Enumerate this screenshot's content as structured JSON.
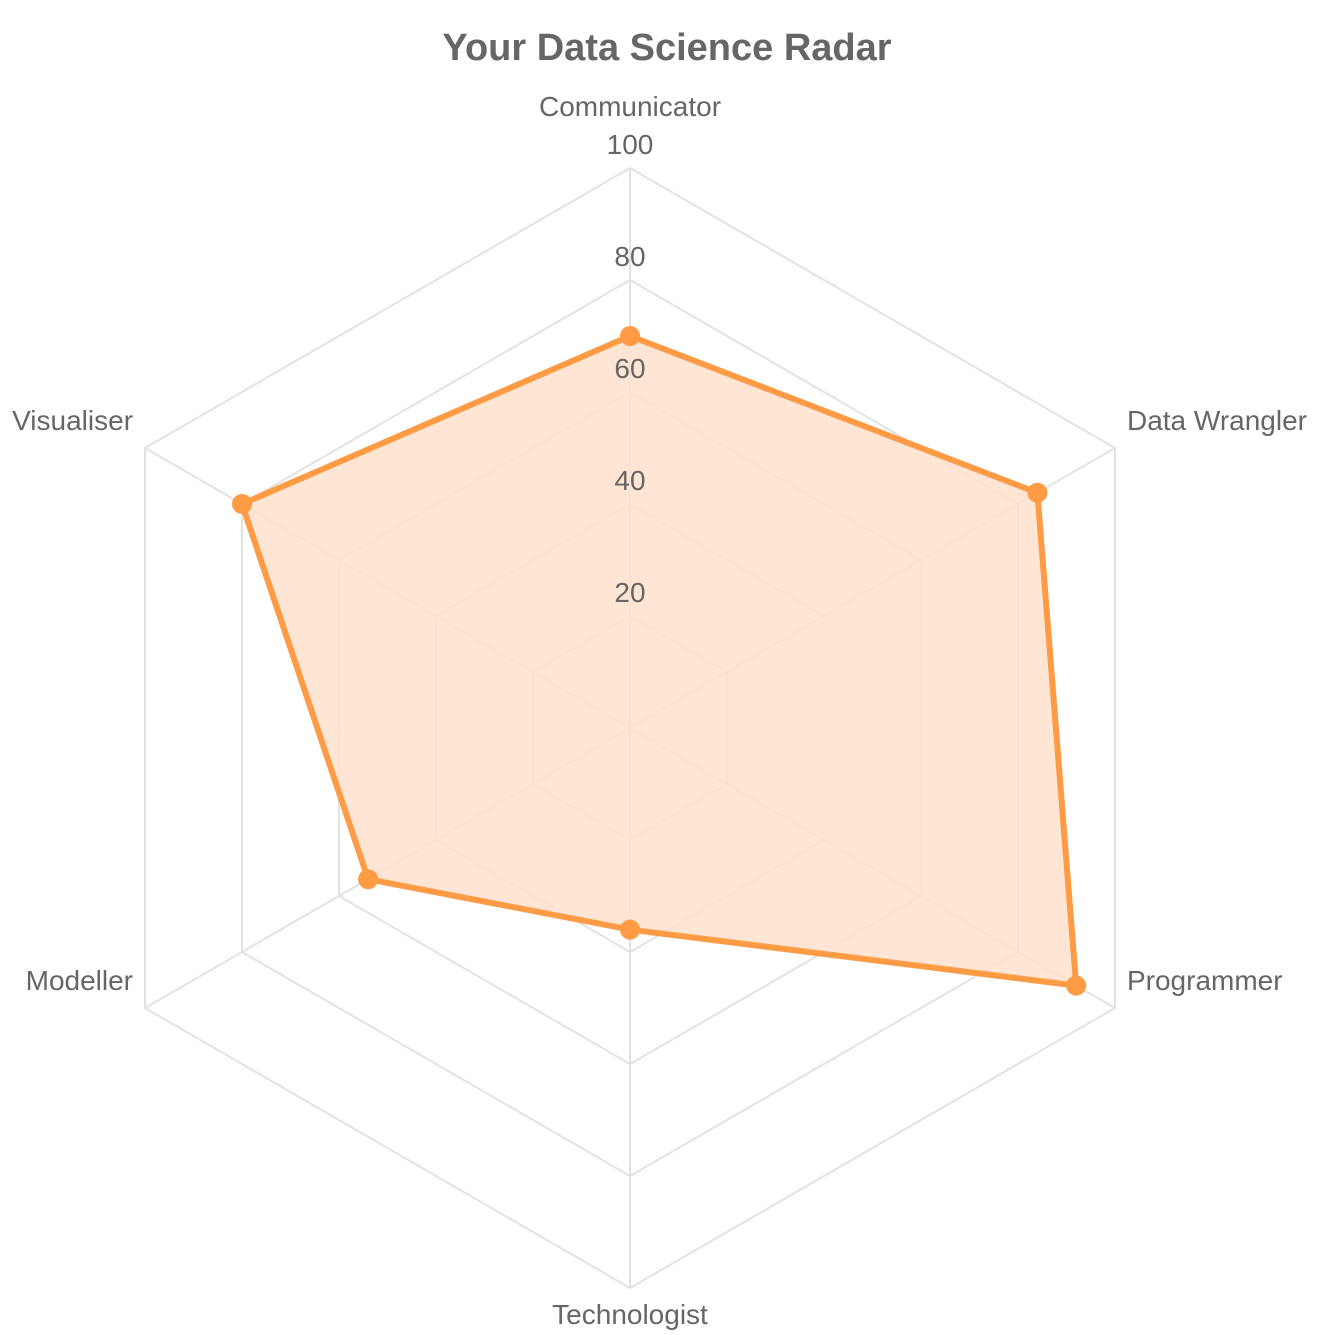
{
  "chart_data": {
    "type": "radar",
    "title": "Your Data Science Radar",
    "categories": [
      "Communicator",
      "Data Wrangler",
      "Programmer",
      "Technologist",
      "Modeller",
      "Visualiser"
    ],
    "series": [
      {
        "values": [
          70,
          84,
          92,
          36,
          54,
          80
        ]
      }
    ],
    "rlim": [
      0,
      100
    ],
    "ticks": [
      "20",
      "40",
      "60",
      "80",
      "100"
    ],
    "grid": true,
    "legend": "none"
  },
  "colors": {
    "series_stroke": "#ff9a45",
    "series_fill": "#ffe2cc",
    "grid": "#e2e2e2",
    "text": "#666666"
  }
}
